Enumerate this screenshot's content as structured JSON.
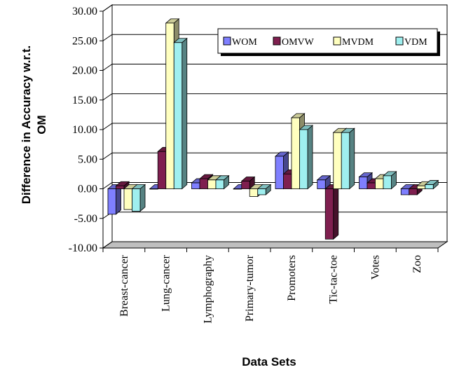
{
  "chart_data": {
    "type": "bar",
    "title": "",
    "xlabel": "Data Sets",
    "ylabel_lines": [
      "Difference in Accuracy w.r.t.",
      "OM"
    ],
    "ylim": [
      -10,
      30
    ],
    "ytick_values": [
      -10,
      -5,
      0,
      5,
      10,
      15,
      20,
      25,
      30
    ],
    "ytick_labels": [
      "-10.00",
      "-5.00",
      "0.00",
      "5.00",
      "10.00",
      "15.00",
      "20.00",
      "25.00",
      "30.00"
    ],
    "grid": true,
    "legend_position": "top-right",
    "categories": [
      "Breast-cancer",
      "Lung-cancer",
      "Lymphography",
      "Primary-tumor",
      "Promoters",
      "Tic-tac-toe",
      "Votes",
      "Zoo"
    ],
    "series": [
      {
        "name": "WOM",
        "color": "#7f7fff",
        "values": [
          -4.3,
          0.0,
          1.0,
          0.0,
          5.5,
          1.5,
          2.0,
          -1.0
        ]
      },
      {
        "name": "OMVW",
        "color": "#7f1f4f",
        "values": [
          0.5,
          6.3,
          1.7,
          1.3,
          2.5,
          -8.5,
          1.0,
          -1.0
        ]
      },
      {
        "name": "MVDM",
        "color": "#ffffbf",
        "values": [
          -3.5,
          28.0,
          1.5,
          -1.3,
          12.0,
          9.5,
          1.7,
          0.5
        ]
      },
      {
        "name": "VDM",
        "color": "#9fefef",
        "values": [
          -3.8,
          24.7,
          1.5,
          -1.0,
          10.0,
          9.5,
          2.2,
          0.7
        ]
      }
    ]
  }
}
